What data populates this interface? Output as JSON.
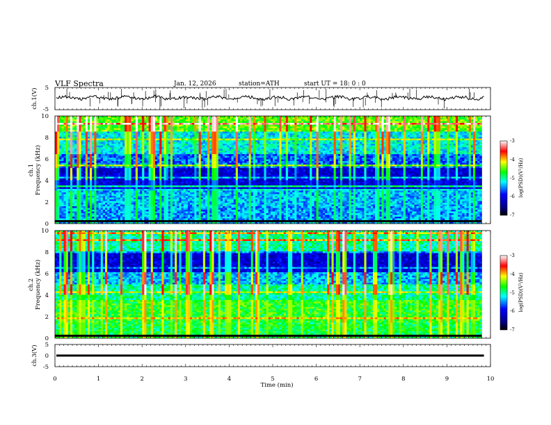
{
  "header": {
    "title": "VLF  Spectra",
    "date": "Jan. 12, 2026",
    "station": "station=ATH",
    "start_ut": "start  UT  =   18: 0  : 0"
  },
  "chart_data": [
    {
      "type": "line",
      "name": "ch1-waveform",
      "ylabel": "ch.1(V)",
      "ylim": [
        -5,
        5
      ],
      "yticks": [
        "5",
        "-5"
      ],
      "xlim": [
        0,
        10
      ],
      "baseline_value": 0.3
    },
    {
      "type": "heatmap",
      "name": "ch1-spectrogram",
      "ylabel": "ch.1\nFrequency (kHz)",
      "ylim": [
        0,
        10
      ],
      "yticks": [
        "10",
        "8",
        "6",
        "4",
        "2",
        "0"
      ],
      "xlim": [
        0,
        9.8
      ],
      "colorbar": {
        "label": "log(PSD)(V²/Hz)",
        "range": [
          -7,
          -3
        ],
        "ticks": [
          "-3",
          "-4",
          "-5",
          "-6",
          "-7"
        ]
      },
      "data_end_min": 9.8
    },
    {
      "type": "heatmap",
      "name": "ch2-spectrogram",
      "ylabel": "ch.2\nFrequency (kHz)",
      "ylim": [
        0,
        10
      ],
      "yticks": [
        "10",
        "8",
        "6",
        "4",
        "2",
        "0"
      ],
      "xlim": [
        0,
        9.8
      ],
      "colorbar": {
        "label": "log(PSD)(V²/Hz)",
        "range": [
          -7,
          -3
        ],
        "ticks": [
          "-3",
          "-4",
          "-5",
          "-6",
          "-7"
        ]
      },
      "data_end_min": 9.8
    },
    {
      "type": "line",
      "name": "ch3-waveform",
      "ylabel": "ch.3(V)",
      "ylim": [
        -5,
        5
      ],
      "yticks": [
        "5",
        "0",
        "-5"
      ],
      "xlim": [
        0,
        10
      ],
      "baseline_value": 0
    }
  ],
  "xaxis": {
    "label": "Time  (min)",
    "ticks": [
      "0",
      "1",
      "2",
      "3",
      "4",
      "5",
      "6",
      "7",
      "8",
      "9",
      "10"
    ],
    "range": [
      0,
      10
    ]
  },
  "colors": {
    "axis": "#000000",
    "colormap": [
      "#000080",
      "#0000ff",
      "#00ffff",
      "#00ff00",
      "#ffff00",
      "#ff0000",
      "#ffffff"
    ]
  },
  "labels": {
    "ch1_volt": "ch.1(V)",
    "ch1_freq_a": "ch.1",
    "ch1_freq_b": "Frequency (kHz)",
    "ch2_freq_a": "ch.2",
    "ch2_freq_b": "Frequency (kHz)",
    "ch3_volt": "ch.3(V)",
    "cb_label": "log(PSD)(V²/Hz)"
  }
}
